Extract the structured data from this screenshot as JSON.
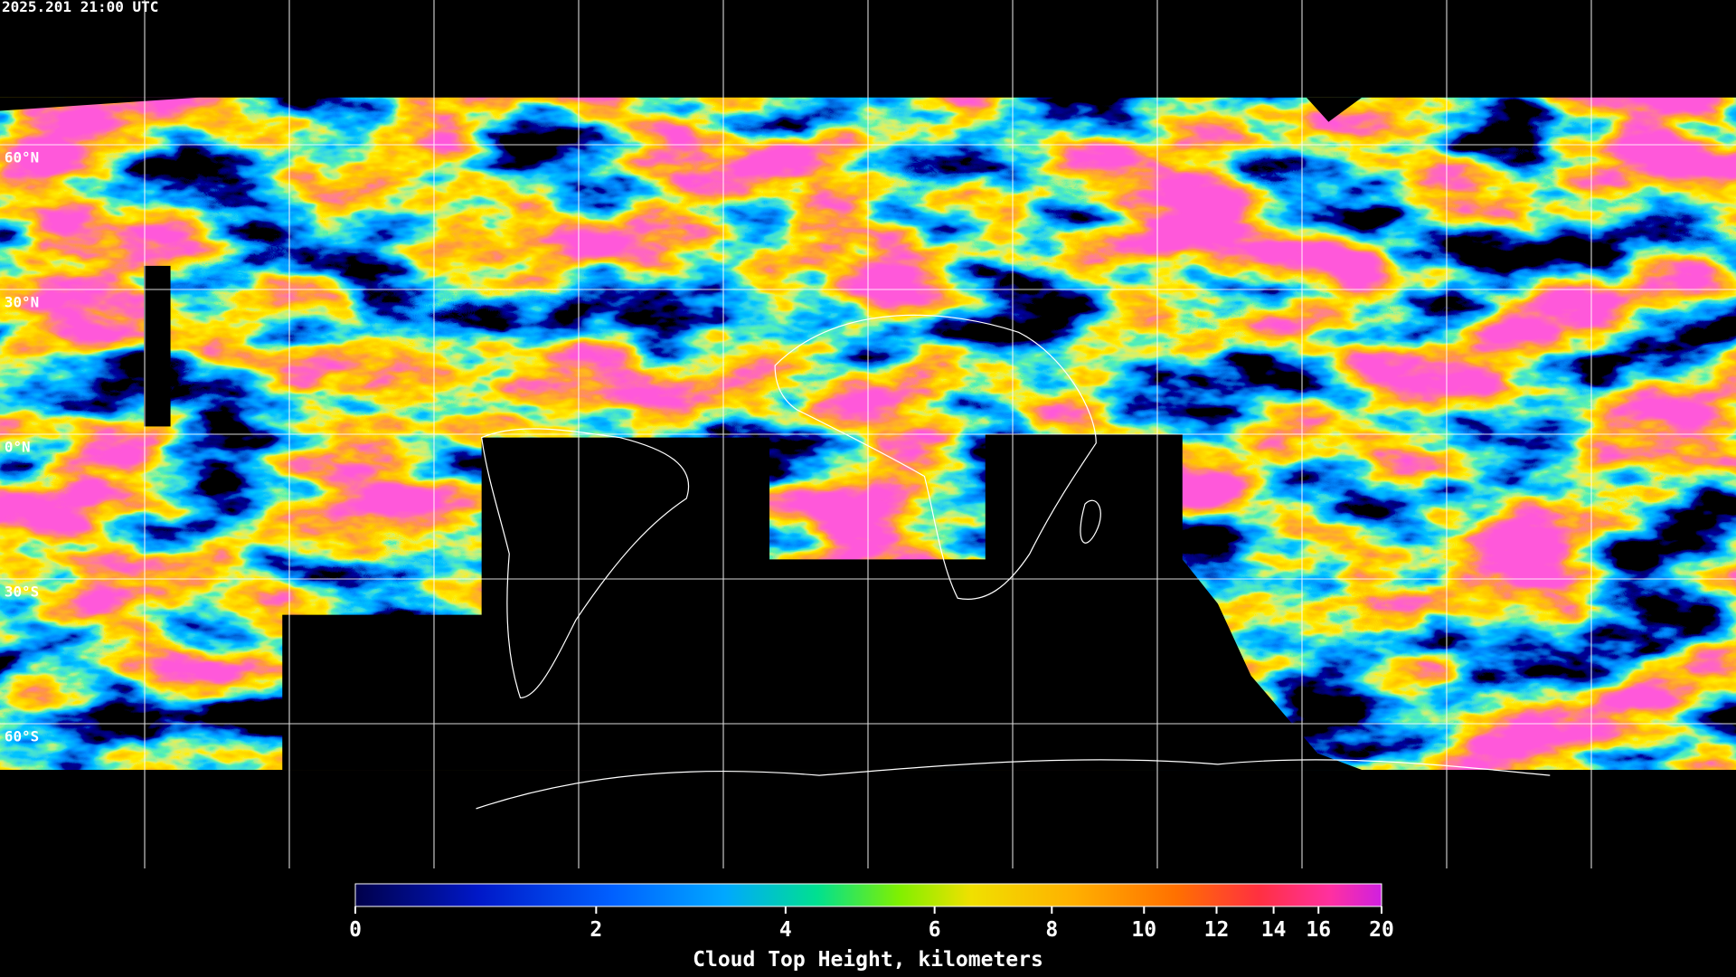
{
  "timestamp": "2025.201 21:00 UTC",
  "lat_labels": [
    "60°N",
    "30°N",
    "0°N",
    "30°S",
    "60°S"
  ],
  "colorbar": {
    "title": "Cloud Top Height, kilometers",
    "range": [
      0,
      20
    ],
    "ticks": [
      0,
      2,
      4,
      6,
      8,
      10,
      12,
      14,
      16,
      20
    ]
  }
}
